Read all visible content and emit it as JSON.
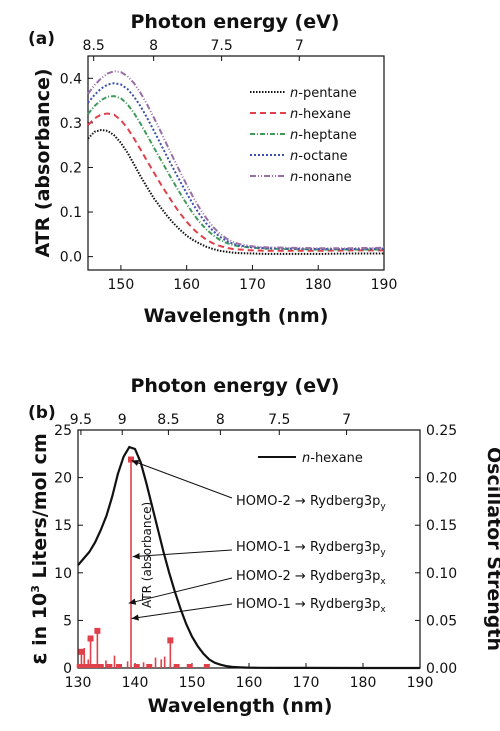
{
  "chart_data": [
    {
      "panel_label": "(a)",
      "type": "line",
      "title": "",
      "top_axis": {
        "label": "Photon energy (eV)",
        "ticks": [
          {
            "value": 8.5,
            "label": "8.5"
          },
          {
            "value": 8,
            "label": "8"
          },
          {
            "value": 7.5,
            "label": "7.5"
          },
          {
            "value": 7,
            "label": "7"
          }
        ]
      },
      "xlabel": "Wavelength (nm)",
      "ylabel": "ATR (absorbance)",
      "xlim": [
        145,
        190
      ],
      "ylim": [
        -0.03,
        0.45
      ],
      "x_ticks": [
        150,
        160,
        170,
        180,
        190
      ],
      "y_ticks": [
        0.0,
        0.1,
        0.2,
        0.3,
        0.4
      ],
      "grid": false,
      "legend_position": "top-right",
      "series": [
        {
          "name": "n-pentane",
          "prefix": "n",
          "suffix": "-pentane",
          "color": "#111111",
          "dash": "1.5,1.5",
          "x": [
            145,
            146,
            147,
            148,
            149,
            150,
            151,
            152,
            153,
            154,
            155,
            156,
            157,
            158,
            159,
            160,
            161,
            162,
            163,
            164,
            165,
            166,
            167,
            168,
            170,
            172,
            175,
            180,
            185,
            190
          ],
          "y": [
            0.265,
            0.28,
            0.284,
            0.282,
            0.272,
            0.255,
            0.233,
            0.207,
            0.18,
            0.155,
            0.131,
            0.111,
            0.092,
            0.075,
            0.06,
            0.047,
            0.037,
            0.029,
            0.022,
            0.017,
            0.013,
            0.011,
            0.009,
            0.008,
            0.007,
            0.006,
            0.006,
            0.006,
            0.007,
            0.007
          ]
        },
        {
          "name": "n-hexane",
          "prefix": "n",
          "suffix": "-hexane",
          "color": "#e0404a",
          "dash": "6,4",
          "x": [
            145,
            146,
            147,
            148,
            149,
            150,
            151,
            152,
            153,
            154,
            155,
            156,
            157,
            158,
            159,
            160,
            161,
            162,
            163,
            164,
            165,
            166,
            167,
            168,
            170,
            172,
            175,
            180,
            185,
            190
          ],
          "y": [
            0.295,
            0.31,
            0.319,
            0.321,
            0.318,
            0.306,
            0.288,
            0.265,
            0.24,
            0.214,
            0.189,
            0.164,
            0.141,
            0.118,
            0.097,
            0.078,
            0.062,
            0.049,
            0.038,
            0.03,
            0.024,
            0.02,
            0.017,
            0.016,
            0.014,
            0.013,
            0.013,
            0.013,
            0.014,
            0.014
          ]
        },
        {
          "name": "n-heptane",
          "prefix": "n",
          "suffix": "-heptane",
          "color": "#3f9a5c",
          "dash": "5,2,1,2",
          "x": [
            145,
            146,
            147,
            148,
            149,
            150,
            151,
            152,
            153,
            154,
            155,
            156,
            157,
            158,
            159,
            160,
            161,
            162,
            163,
            164,
            165,
            166,
            167,
            168,
            170,
            172,
            175,
            180,
            185,
            190
          ],
          "y": [
            0.32,
            0.338,
            0.351,
            0.359,
            0.36,
            0.355,
            0.342,
            0.322,
            0.298,
            0.272,
            0.245,
            0.219,
            0.193,
            0.167,
            0.142,
            0.118,
            0.096,
            0.077,
            0.061,
            0.048,
            0.038,
            0.031,
            0.026,
            0.023,
            0.02,
            0.018,
            0.017,
            0.016,
            0.016,
            0.016
          ]
        },
        {
          "name": "n-octane",
          "prefix": "n",
          "suffix": "-octane",
          "color": "#3a4fb0",
          "dash": "2,2",
          "x": [
            145,
            146,
            147,
            148,
            149,
            150,
            151,
            152,
            153,
            154,
            155,
            156,
            157,
            158,
            159,
            160,
            161,
            162,
            163,
            164,
            165,
            166,
            167,
            168,
            170,
            172,
            175,
            180,
            185,
            190
          ],
          "y": [
            0.345,
            0.363,
            0.377,
            0.386,
            0.389,
            0.386,
            0.376,
            0.359,
            0.337,
            0.311,
            0.283,
            0.254,
            0.225,
            0.197,
            0.169,
            0.142,
            0.117,
            0.094,
            0.074,
            0.058,
            0.045,
            0.036,
            0.029,
            0.025,
            0.021,
            0.019,
            0.018,
            0.017,
            0.017,
            0.018
          ]
        },
        {
          "name": "n-nonane",
          "prefix": "n",
          "suffix": "-nonane",
          "color": "#9a6fa6",
          "dash": "6,2,1,2,1,2",
          "x": [
            145,
            146,
            147,
            148,
            149,
            150,
            151,
            152,
            153,
            154,
            155,
            156,
            157,
            158,
            159,
            160,
            161,
            162,
            163,
            164,
            165,
            166,
            167,
            168,
            170,
            172,
            175,
            180,
            185,
            190
          ],
          "y": [
            0.365,
            0.385,
            0.4,
            0.411,
            0.416,
            0.414,
            0.405,
            0.389,
            0.367,
            0.341,
            0.312,
            0.282,
            0.251,
            0.22,
            0.19,
            0.161,
            0.133,
            0.108,
            0.086,
            0.067,
            0.052,
            0.041,
            0.033,
            0.028,
            0.023,
            0.021,
            0.02,
            0.019,
            0.019,
            0.02
          ]
        }
      ]
    },
    {
      "panel_label": "(b)",
      "type": "line",
      "title": "",
      "top_axis": {
        "label": "Photon energy (eV)",
        "ticks": [
          {
            "value": 9.5,
            "label": "9.5"
          },
          {
            "value": 9,
            "label": "9"
          },
          {
            "value": 8.5,
            "label": "8.5"
          },
          {
            "value": 8,
            "label": "8"
          },
          {
            "value": 7.5,
            "label": "7.5"
          },
          {
            "value": 7,
            "label": "7"
          }
        ]
      },
      "xlabel": "Wavelength (nm)",
      "ylabel": "ε in 10³ Liters/mol cm",
      "ylabel_parts": {
        "symbol": "ε",
        "pre": " in 10",
        "sup": "3",
        "post": " Liters/mol cm"
      },
      "y2label": "Oscillator Strength",
      "xlim": [
        130,
        190
      ],
      "ylim": [
        0,
        25
      ],
      "y2lim": [
        0,
        0.25
      ],
      "x_ticks": [
        130,
        140,
        150,
        160,
        170,
        180,
        190
      ],
      "y_ticks": [
        0,
        5,
        10,
        15,
        20,
        25
      ],
      "y2_ticks": [
        "0.00",
        "0.05",
        "0.10",
        "0.15",
        "0.20",
        "0.25"
      ],
      "grid": false,
      "legend_position": "top-right",
      "curve_label": "ATR (absorbance)",
      "series": [
        {
          "name": "n-hexane",
          "prefix": "n",
          "suffix": "-hexane",
          "color": "#111111",
          "x": [
            130,
            131,
            132,
            133,
            134,
            135,
            136,
            137,
            138,
            139,
            140,
            141,
            142,
            143,
            144,
            145,
            146,
            147,
            148,
            149,
            150,
            151,
            152,
            153,
            154,
            155,
            156,
            157,
            158,
            159,
            160,
            162,
            165,
            170,
            180,
            190
          ],
          "y": [
            10.8,
            11.5,
            12.2,
            13.2,
            14.5,
            16.0,
            18.0,
            20.4,
            22.2,
            23.2,
            23.0,
            21.6,
            19.4,
            17.0,
            14.6,
            12.2,
            10.0,
            8.0,
            6.2,
            4.6,
            3.3,
            2.3,
            1.5,
            0.9,
            0.55,
            0.35,
            0.2,
            0.12,
            0.08,
            0.05,
            0.03,
            0.02,
            0.01,
            0.01,
            0.0,
            0.0
          ]
        }
      ],
      "oscillator_strength": {
        "color": "#e0404a",
        "major": [
          {
            "x": 139.3,
            "f": 0.219,
            "marker": true
          },
          {
            "x": 146.2,
            "f": 0.029,
            "marker": true
          },
          {
            "x": 133.4,
            "f": 0.039,
            "marker": true
          },
          {
            "x": 132.2,
            "f": 0.031,
            "marker": true
          },
          {
            "x": 130.6,
            "f": 0.017,
            "marker": true
          },
          {
            "x": 131.1,
            "f": 0.021,
            "marker": false
          },
          {
            "x": 131.8,
            "f": 0.009,
            "marker": false
          },
          {
            "x": 134.9,
            "f": 0.008,
            "marker": false
          },
          {
            "x": 136.4,
            "f": 0.013,
            "marker": false
          },
          {
            "x": 138.7,
            "f": 0.007,
            "marker": false
          },
          {
            "x": 141.5,
            "f": 0.006,
            "marker": false
          },
          {
            "x": 143.6,
            "f": 0.011,
            "marker": false
          },
          {
            "x": 144.6,
            "f": 0.009,
            "marker": false
          },
          {
            "x": 145.2,
            "f": 0.012,
            "marker": false
          }
        ],
        "baseline_markers": [
          130.3,
          131.0,
          131.6,
          132.8,
          134.0,
          135.5,
          137.2,
          140.3,
          142.5,
          147.3,
          149.6,
          152.6
        ]
      },
      "annotations": [
        {
          "pre": "HOMO-2 → Rydberg3p",
          "sub": "y",
          "target_x": 139.4,
          "target_y": 21.8
        },
        {
          "pre": "HOMO-1 → Rydberg3p",
          "sub": "y",
          "target_x": 139.6,
          "target_y": 11.7
        },
        {
          "pre": "HOMO-2 → Rydberg3p",
          "sub": "x",
          "target_x": 138.9,
          "target_y": 6.8
        },
        {
          "pre": "HOMO-1 → Rydberg3p",
          "sub": "x",
          "target_x": 139.4,
          "target_y": 5.2
        }
      ]
    }
  ]
}
